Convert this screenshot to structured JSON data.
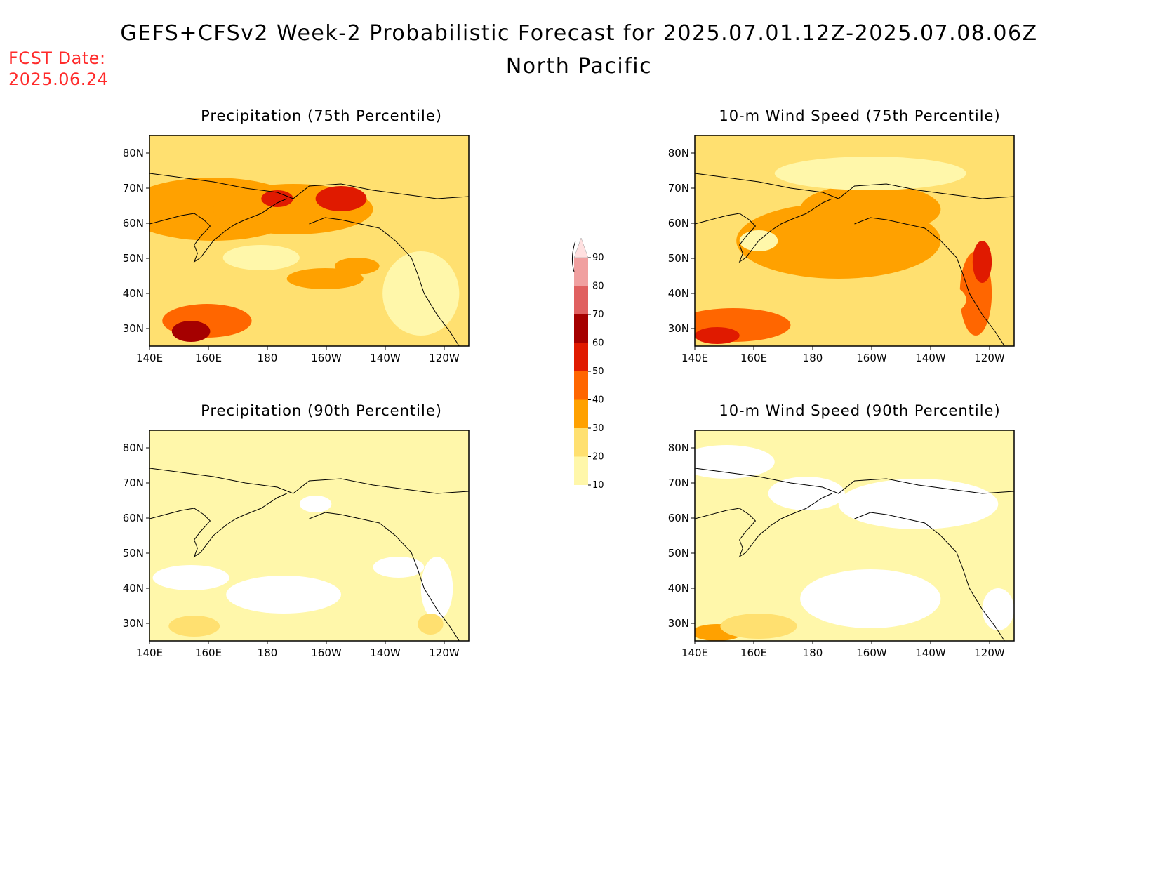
{
  "header": {
    "title": "GEFS+CFSv2 Week-2 Probabilistic Forecast for 2025.07.01.12Z-2025.07.08.06Z",
    "subtitle": "North Pacific",
    "fcst_label_line1": "FCST Date:",
    "fcst_label_line2": "2025.06.24"
  },
  "colorbar": {
    "levels": [
      "10",
      "20",
      "30",
      "40",
      "50",
      "60",
      "70",
      "80",
      "90"
    ],
    "colors": [
      "#fff7aa",
      "#ffe070",
      "#ffa100",
      "#ff6600",
      "#e01a00",
      "#a50000",
      "#e06060",
      "#f0a0a0",
      "#ffe0e0"
    ]
  },
  "axes": {
    "lat_labels": [
      "80N",
      "70N",
      "60N",
      "50N",
      "40N",
      "30N"
    ],
    "lon_labels": [
      "140E",
      "160E",
      "180",
      "160W",
      "140W",
      "120W"
    ]
  },
  "panels": [
    {
      "id": "precip75",
      "title": "Precipitation (75th Percentile)",
      "base_level": 1,
      "blobs": [
        [
          0.2,
          0.35,
          0.28,
          0.15,
          2
        ],
        [
          0.45,
          0.35,
          0.25,
          0.12,
          2
        ],
        [
          0.6,
          0.3,
          0.08,
          0.06,
          4
        ],
        [
          0.4,
          0.3,
          0.05,
          0.04,
          4
        ],
        [
          0.18,
          0.88,
          0.14,
          0.08,
          3
        ],
        [
          0.13,
          0.93,
          0.06,
          0.05,
          5
        ],
        [
          0.55,
          0.68,
          0.12,
          0.05,
          2
        ],
        [
          0.65,
          0.62,
          0.07,
          0.04,
          2
        ],
        [
          0.85,
          0.75,
          0.12,
          0.2,
          0
        ],
        [
          0.35,
          0.58,
          0.12,
          0.06,
          0
        ]
      ]
    },
    {
      "id": "wind75",
      "title": "10-m Wind Speed (75th Percentile)",
      "base_level": 1,
      "blobs": [
        [
          0.45,
          0.5,
          0.32,
          0.18,
          2
        ],
        [
          0.55,
          0.35,
          0.22,
          0.12,
          2
        ],
        [
          0.12,
          0.9,
          0.18,
          0.08,
          3
        ],
        [
          0.07,
          0.95,
          0.07,
          0.04,
          4
        ],
        [
          0.88,
          0.75,
          0.05,
          0.2,
          3
        ],
        [
          0.9,
          0.6,
          0.03,
          0.1,
          4
        ],
        [
          0.2,
          0.5,
          0.06,
          0.05,
          0
        ],
        [
          0.55,
          0.18,
          0.3,
          0.08,
          0
        ],
        [
          0.7,
          0.78,
          0.15,
          0.1,
          1
        ]
      ]
    },
    {
      "id": "precip90",
      "title": "Precipitation (90th Percentile)",
      "base_level": 0,
      "blobs": [
        [
          0.13,
          0.7,
          0.12,
          0.06,
          -1
        ],
        [
          0.42,
          0.78,
          0.18,
          0.09,
          -1
        ],
        [
          0.78,
          0.65,
          0.08,
          0.05,
          -1
        ],
        [
          0.9,
          0.75,
          0.05,
          0.15,
          -1
        ],
        [
          0.88,
          0.92,
          0.04,
          0.05,
          1
        ],
        [
          0.14,
          0.93,
          0.08,
          0.05,
          1
        ],
        [
          0.52,
          0.35,
          0.05,
          0.04,
          -1
        ]
      ]
    },
    {
      "id": "wind90",
      "title": "10-m Wind Speed (90th Percentile)",
      "base_level": 0,
      "blobs": [
        [
          0.1,
          0.15,
          0.15,
          0.08,
          -1
        ],
        [
          0.35,
          0.3,
          0.12,
          0.08,
          -1
        ],
        [
          0.7,
          0.35,
          0.25,
          0.12,
          -1
        ],
        [
          0.55,
          0.8,
          0.22,
          0.14,
          -1
        ],
        [
          0.95,
          0.85,
          0.05,
          0.1,
          -1
        ],
        [
          0.07,
          0.96,
          0.08,
          0.04,
          2
        ],
        [
          0.2,
          0.93,
          0.12,
          0.06,
          1
        ]
      ]
    }
  ]
}
